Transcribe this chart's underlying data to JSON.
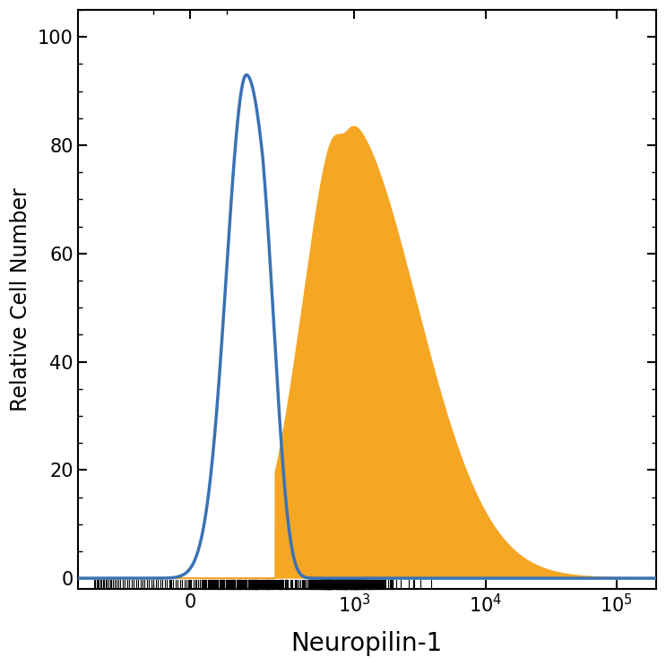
{
  "title": "",
  "xlabel": "Neuropilin-1",
  "ylabel": "Relative Cell Number",
  "ylim": [
    -2,
    105
  ],
  "yticks": [
    0,
    20,
    40,
    60,
    80,
    100
  ],
  "blue_color": "#3a72b5",
  "orange_color": "#f5a623",
  "background_color": "#ffffff",
  "xlabel_fontsize": 20,
  "ylabel_fontsize": 17,
  "tick_fontsize": 15,
  "linewidth_blue": 2.5,
  "linewidth_orange": 1.5
}
